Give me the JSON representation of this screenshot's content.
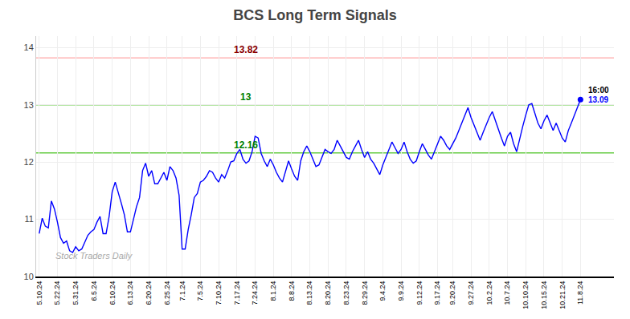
{
  "chart_data": {
    "type": "line",
    "title": "BCS Long Term Signals",
    "categories": [
      "5.10.24",
      null,
      null,
      null,
      null,
      null,
      "5.22.24",
      null,
      null,
      null,
      null,
      null,
      "5.31.24",
      null,
      null,
      null,
      null,
      null,
      "6.5.24",
      null,
      null,
      null,
      null,
      null,
      "6.10.24",
      null,
      null,
      null,
      null,
      null,
      "6.13.24",
      null,
      null,
      null,
      null,
      null,
      "6.20.24",
      null,
      null,
      null,
      null,
      null,
      "6.25.24",
      null,
      null,
      null,
      null,
      "7.1.24",
      null,
      null,
      null,
      null,
      null,
      "7.5.24",
      null,
      null,
      null,
      null,
      null,
      "7.10.24",
      null,
      null,
      null,
      null,
      null,
      "7.17.24",
      null,
      null,
      null,
      null,
      null,
      "7.24.24",
      null,
      null,
      null,
      null,
      null,
      "8.1.24",
      null,
      null,
      null,
      null,
      null,
      "8.8.24",
      null,
      null,
      null,
      null,
      null,
      "8.13.24",
      null,
      null,
      null,
      null,
      null,
      "8.20.24",
      null,
      null,
      null,
      null,
      null,
      "8.23.24",
      null,
      null,
      null,
      null,
      null,
      "8.29.24",
      null,
      null,
      null,
      null,
      null,
      "9.4.24",
      null,
      null,
      null,
      null,
      null,
      "9.9.24",
      null,
      null,
      null,
      null,
      null,
      "9.12.24",
      null,
      null,
      null,
      null,
      null,
      "9.17.24",
      null,
      null,
      null,
      null,
      "9.20.24",
      null,
      null,
      null,
      null,
      null,
      "9.27.24",
      null,
      null,
      null,
      null,
      null,
      "10.2.24",
      null,
      null,
      null,
      null,
      null,
      "10.7.24",
      null,
      null,
      null,
      null,
      null,
      "10.10.24",
      null,
      null,
      null,
      null,
      null,
      "10.15.24",
      null,
      null,
      null,
      null,
      null,
      "10.21.24",
      null,
      null,
      null,
      null,
      null,
      "11.8.24"
    ],
    "values": [
      10.75,
      11.02,
      10.88,
      10.85,
      11.32,
      11.18,
      10.95,
      10.68,
      10.58,
      10.62,
      10.45,
      10.42,
      10.52,
      10.45,
      10.48,
      10.6,
      10.72,
      10.78,
      10.82,
      10.95,
      11.05,
      10.75,
      10.75,
      11.05,
      11.48,
      11.65,
      11.48,
      11.28,
      11.08,
      10.78,
      10.78,
      11.02,
      11.22,
      11.38,
      11.85,
      11.98,
      11.75,
      11.85,
      11.62,
      11.62,
      11.72,
      11.82,
      11.68,
      11.92,
      11.85,
      11.72,
      11.42,
      10.48,
      10.48,
      10.82,
      11.08,
      11.38,
      11.45,
      11.65,
      11.68,
      11.75,
      11.85,
      11.82,
      11.72,
      11.65,
      11.78,
      11.72,
      11.85,
      12.0,
      12.02,
      12.15,
      12.22,
      12.05,
      11.98,
      12.02,
      12.18,
      12.45,
      12.42,
      12.15,
      12.02,
      11.92,
      12.05,
      11.95,
      11.82,
      11.72,
      11.65,
      11.85,
      12.02,
      11.88,
      11.75,
      11.68,
      12.02,
      12.18,
      12.28,
      12.18,
      12.05,
      11.92,
      11.95,
      12.08,
      12.22,
      12.18,
      12.15,
      12.22,
      12.38,
      12.28,
      12.18,
      12.08,
      12.05,
      12.18,
      12.28,
      12.38,
      12.22,
      12.08,
      12.18,
      12.05,
      11.98,
      11.88,
      11.78,
      11.95,
      12.08,
      12.22,
      12.35,
      12.25,
      12.15,
      12.22,
      12.35,
      12.18,
      12.05,
      11.98,
      12.02,
      12.18,
      12.32,
      12.22,
      12.12,
      12.05,
      12.18,
      12.32,
      12.45,
      12.38,
      12.28,
      12.22,
      12.32,
      12.42,
      12.55,
      12.68,
      12.82,
      12.95,
      12.78,
      12.65,
      12.52,
      12.38,
      12.52,
      12.65,
      12.78,
      12.88,
      12.72,
      12.58,
      12.42,
      12.28,
      12.45,
      12.52,
      12.32,
      12.18,
      12.42,
      12.62,
      12.82,
      13.0,
      13.02,
      12.85,
      12.68,
      12.58,
      12.72,
      12.82,
      12.68,
      12.55,
      12.68,
      12.55,
      12.42,
      12.35,
      12.55,
      12.68,
      12.82,
      12.95,
      13.09
    ],
    "color": "blue",
    "ylim": [
      10,
      14.2
    ],
    "yticks": [
      10,
      11,
      12,
      13,
      14
    ],
    "grid": true,
    "reference_lines": [
      {
        "value": 13.82,
        "label": "13.82",
        "color": "#ffb3b3",
        "label_color": "darkred"
      },
      {
        "value": 13.0,
        "label": "13",
        "color": "#66cc44",
        "label_color": "green"
      },
      {
        "value": 12.16,
        "label": "12.16",
        "color": "#66cc44",
        "label_color": "green"
      }
    ],
    "annotations": [
      {
        "text": "16:00",
        "x": "11.8.24",
        "y": 13.09,
        "color": "black"
      },
      {
        "text": "13.09",
        "x": "11.8.24",
        "y": 13.09,
        "color": "blue"
      }
    ],
    "watermark": "Stock Traders Daily"
  }
}
